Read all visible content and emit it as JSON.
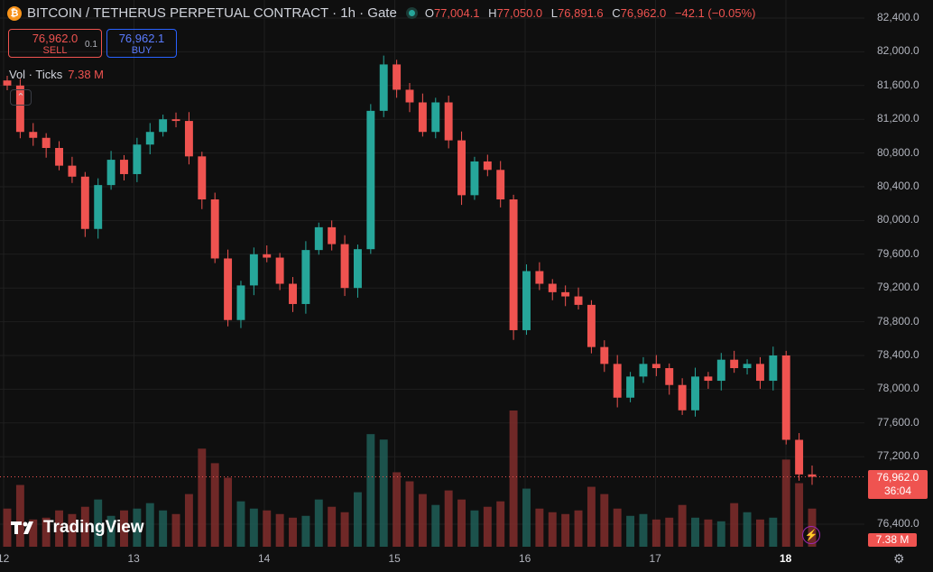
{
  "header": {
    "title": "BITCOIN / TETHERUS PERPETUAL CONTRACT · 1h · Gate",
    "ohlc": [
      {
        "label": "O",
        "value": "77,004.1"
      },
      {
        "label": "H",
        "value": "77,050.0"
      },
      {
        "label": "L",
        "value": "76,891.6"
      },
      {
        "label": "C",
        "value": "76,962.0"
      }
    ],
    "change": "−42.1 (−0.05%)",
    "sell": {
      "price": "76,962.0",
      "label": "SELL"
    },
    "buy": {
      "price": "76,962.1",
      "label": "BUY"
    },
    "spread": "0.1",
    "volume_label": "Vol · Ticks",
    "volume_value": "7.38 M"
  },
  "price_tag": {
    "price": "76,962.0",
    "countdown": "36:04"
  },
  "volume_tag": "7.38 M",
  "brand": "TradingView",
  "colors": {
    "up": "#26a69a",
    "down": "#ef5350",
    "background": "#0f0f0f",
    "grid": "#1f1f1f"
  },
  "chart_data": {
    "type": "candlestick",
    "ylim": [
      76200,
      82600
    ],
    "yticks": [
      "82,400.0",
      "82,000.0",
      "81,600.0",
      "81,200.0",
      "80,800.0",
      "80,400.0",
      "80,000.0",
      "79,600.0",
      "79,200.0",
      "78,800.0",
      "78,400.0",
      "78,000.0",
      "77,600.0",
      "77,200.0",
      "76,400.0"
    ],
    "xticks": [
      "12",
      "13",
      "14",
      "15",
      "16",
      "17",
      "18"
    ],
    "last_price": 76962.0,
    "close": [
      81600,
      81050,
      80980,
      80860,
      80650,
      80520,
      79900,
      80420,
      80720,
      80550,
      80900,
      81050,
      81200,
      81180,
      80760,
      80250,
      79550,
      78820,
      79230,
      79600,
      79560,
      79250,
      79010,
      79650,
      79920,
      79720,
      79200,
      79660,
      81300,
      81850,
      81550,
      81400,
      81050,
      81400,
      80950,
      80300,
      80700,
      80600,
      80250,
      78700,
      79400,
      79250,
      79150,
      79100,
      79000,
      78500,
      78300,
      77900,
      78150,
      78300,
      78250,
      78050,
      77750,
      78150,
      78100,
      78350,
      78250,
      78300,
      78100,
      78400,
      77400,
      76990,
      76962
    ],
    "volume": [
      2.1,
      3.4,
      1.5,
      1.6,
      2.0,
      1.8,
      2.2,
      2.6,
      1.7,
      2.0,
      2.1,
      2.4,
      2.0,
      1.8,
      2.9,
      5.4,
      4.6,
      3.8,
      2.5,
      2.1,
      2.0,
      1.8,
      1.6,
      1.7,
      2.6,
      2.2,
      1.9,
      3.0,
      6.2,
      5.9,
      4.1,
      3.6,
      2.9,
      2.3,
      3.1,
      2.6,
      2.0,
      2.2,
      2.5,
      7.5,
      3.2,
      2.1,
      1.9,
      1.8,
      2.0,
      3.3,
      2.9,
      2.1,
      1.7,
      1.8,
      1.5,
      1.6,
      2.3,
      1.6,
      1.5,
      1.4,
      2.4,
      1.9,
      1.5,
      1.6,
      4.8,
      3.5,
      2.1
    ],
    "ylabel": "",
    "xlabel": ""
  }
}
